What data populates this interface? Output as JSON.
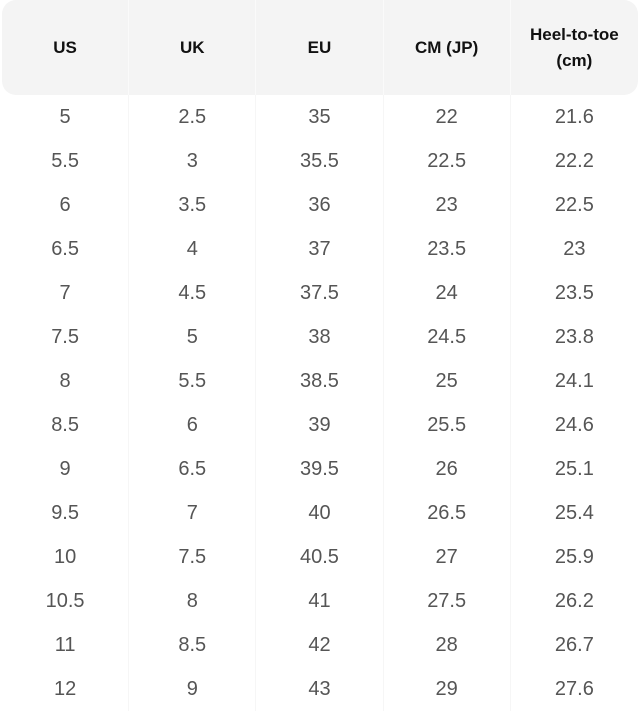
{
  "table": {
    "header": [
      "US",
      "UK",
      "EU",
      "CM (JP)",
      "Heel-to-toe (cm)"
    ],
    "rows": [
      [
        "5",
        "2.5",
        "35",
        "22",
        "21.6"
      ],
      [
        "5.5",
        "3",
        "35.5",
        "22.5",
        "22.2"
      ],
      [
        "6",
        "3.5",
        "36",
        "23",
        "22.5"
      ],
      [
        "6.5",
        "4",
        "37",
        "23.5",
        "23"
      ],
      [
        "7",
        "4.5",
        "37.5",
        "24",
        "23.5"
      ],
      [
        "7.5",
        "5",
        "38",
        "24.5",
        "23.8"
      ],
      [
        "8",
        "5.5",
        "38.5",
        "25",
        "24.1"
      ],
      [
        "8.5",
        "6",
        "39",
        "25.5",
        "24.6"
      ],
      [
        "9",
        "6.5",
        "39.5",
        "26",
        "25.1"
      ],
      [
        "9.5",
        "7",
        "40",
        "26.5",
        "25.4"
      ],
      [
        "10",
        "7.5",
        "40.5",
        "27",
        "25.9"
      ],
      [
        "10.5",
        "8",
        "41",
        "27.5",
        "26.2"
      ],
      [
        "11",
        "8.5",
        "42",
        "28",
        "26.7"
      ],
      [
        "12",
        "9",
        "43",
        "29",
        "27.6"
      ]
    ]
  }
}
